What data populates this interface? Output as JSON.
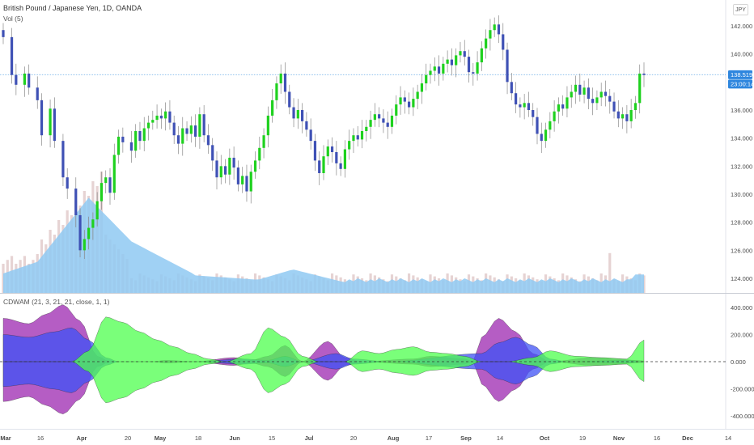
{
  "header": {
    "symbol_title": "British Pound / Japanese Yen, 1D, OANDA",
    "volume_label": "Vol (5)",
    "currency_button": "JPY"
  },
  "indicator": {
    "label": "CDWAM (21, 3, 21, 21, close, 1, 1)"
  },
  "price_tags": {
    "last_price": "138.519",
    "countdown": "23:00:14",
    "last_price_value": 138.519,
    "tag_color": "#2e86de"
  },
  "colors": {
    "up_candle": "#1fd11f",
    "down_candle": "#3f51b5",
    "volume_bar": "#e6d3d3",
    "volume_ma_fill": "#8fc9f2",
    "purple_fill": "#9c27b0",
    "blue_fill": "#3f51f5",
    "green_fill": "#4dff4d"
  },
  "chart_data": [
    {
      "type": "candlestick",
      "title": "British Pound / Japanese Yen, 1D, OANDA",
      "ylim": [
        123,
        143
      ],
      "y_ticks": [
        "142.000",
        "140.000",
        "138.000",
        "136.000",
        "134.000",
        "132.000",
        "130.000",
        "128.000",
        "126.000",
        "124.000"
      ],
      "x_ticks": [
        "Mar",
        "16",
        "Apr",
        "20",
        "May",
        "18",
        "Jun",
        "15",
        "Jul",
        "20",
        "Aug",
        "17",
        "Sep",
        "14",
        "Oct",
        "19",
        "Nov",
        "16",
        "Dec",
        "14"
      ],
      "x_range_days": [
        0,
        280
      ],
      "candles_close_by_day": [
        [
          0,
          141.2
        ],
        [
          2,
          138.5
        ],
        [
          3,
          137.8
        ],
        [
          5,
          138.6
        ],
        [
          6,
          137.6
        ],
        [
          8,
          136.7
        ],
        [
          9,
          134.2
        ],
        [
          11,
          136.1
        ],
        [
          12,
          133.8
        ],
        [
          14,
          131.2
        ],
        [
          15,
          130.4
        ],
        [
          17,
          128.5
        ],
        [
          18,
          126.0
        ],
        [
          19,
          126.8
        ],
        [
          20,
          127.6
        ],
        [
          21,
          128.2
        ],
        [
          22,
          129.5
        ],
        [
          23,
          130.8
        ],
        [
          24,
          131.2
        ],
        [
          25,
          130.1
        ],
        [
          26,
          132.8
        ],
        [
          27,
          134.1
        ],
        [
          28,
          133.7
        ],
        [
          30,
          133.1
        ],
        [
          31,
          134.5
        ],
        [
          32,
          133.8
        ],
        [
          33,
          134.7
        ],
        [
          34,
          135.1
        ],
        [
          35,
          135.3
        ],
        [
          36,
          135.6
        ],
        [
          37,
          135.4
        ],
        [
          38,
          135.9
        ],
        [
          39,
          135.1
        ],
        [
          40,
          134.2
        ],
        [
          41,
          133.6
        ],
        [
          42,
          134.7
        ],
        [
          43,
          134.3
        ],
        [
          44,
          134.9
        ],
        [
          45,
          134.1
        ],
        [
          46,
          135.7
        ],
        [
          47,
          134.2
        ],
        [
          48,
          133.5
        ],
        [
          49,
          132.4
        ],
        [
          50,
          131.2
        ],
        [
          51,
          132.0
        ],
        [
          52,
          131.4
        ],
        [
          53,
          132.6
        ],
        [
          54,
          131.9
        ],
        [
          55,
          130.7
        ],
        [
          56,
          131.3
        ],
        [
          57,
          130.2
        ],
        [
          58,
          131.6
        ],
        [
          59,
          132.4
        ],
        [
          60,
          133.3
        ],
        [
          61,
          134.2
        ],
        [
          62,
          135.6
        ],
        [
          63,
          136.7
        ],
        [
          64,
          137.9
        ],
        [
          65,
          138.6
        ],
        [
          66,
          137.3
        ],
        [
          67,
          136.2
        ],
        [
          68,
          135.4
        ],
        [
          69,
          136.0
        ],
        [
          70,
          135.2
        ],
        [
          71,
          134.6
        ],
        [
          72,
          133.8
        ],
        [
          73,
          132.4
        ],
        [
          74,
          131.5
        ],
        [
          75,
          132.7
        ],
        [
          76,
          133.4
        ],
        [
          77,
          133.0
        ],
        [
          78,
          132.2
        ],
        [
          79,
          131.8
        ],
        [
          80,
          133.2
        ],
        [
          81,
          133.8
        ],
        [
          82,
          134.2
        ],
        [
          83,
          133.9
        ],
        [
          84,
          134.5
        ],
        [
          85,
          134.8
        ],
        [
          86,
          135.3
        ],
        [
          87,
          135.7
        ],
        [
          88,
          135.4
        ],
        [
          89,
          135.1
        ],
        [
          90,
          134.8
        ],
        [
          91,
          135.6
        ],
        [
          92,
          136.4
        ],
        [
          93,
          136.9
        ],
        [
          94,
          136.6
        ],
        [
          95,
          136.2
        ],
        [
          96,
          136.8
        ],
        [
          97,
          137.3
        ],
        [
          98,
          137.9
        ],
        [
          99,
          138.5
        ],
        [
          100,
          138.8
        ],
        [
          101,
          139.1
        ],
        [
          102,
          138.6
        ],
        [
          103,
          139.3
        ],
        [
          104,
          139.6
        ],
        [
          105,
          139.2
        ],
        [
          106,
          139.9
        ],
        [
          107,
          140.2
        ],
        [
          108,
          139.8
        ],
        [
          109,
          138.7
        ],
        [
          110,
          138.6
        ],
        [
          111,
          139.4
        ],
        [
          112,
          140.4
        ],
        [
          113,
          141.1
        ],
        [
          114,
          141.7
        ],
        [
          115,
          142.1
        ],
        [
          116,
          141.4
        ],
        [
          117,
          140.3
        ],
        [
          118,
          138.0
        ],
        [
          119,
          137.2
        ],
        [
          120,
          136.4
        ],
        [
          121,
          136.2
        ],
        [
          122,
          136.5
        ],
        [
          123,
          136.0
        ],
        [
          124,
          135.5
        ],
        [
          125,
          134.3
        ],
        [
          126,
          133.8
        ],
        [
          127,
          134.6
        ],
        [
          128,
          135.2
        ],
        [
          129,
          135.9
        ],
        [
          130,
          136.4
        ],
        [
          131,
          136.1
        ],
        [
          132,
          136.9
        ],
        [
          133,
          137.3
        ],
        [
          134,
          137.8
        ],
        [
          135,
          137.1
        ],
        [
          136,
          137.6
        ],
        [
          137,
          136.8
        ],
        [
          138,
          136.5
        ],
        [
          139,
          136.9
        ],
        [
          140,
          137.3
        ],
        [
          141,
          137.0
        ],
        [
          142,
          136.6
        ],
        [
          143,
          135.9
        ],
        [
          144,
          135.4
        ],
        [
          145,
          135.7
        ],
        [
          146,
          135.2
        ],
        [
          147,
          136.0
        ],
        [
          148,
          136.5
        ],
        [
          149,
          138.6
        ],
        [
          150,
          138.5
        ]
      ]
    },
    {
      "type": "area",
      "title": "CDWAM (21, 3, 21, 21, close, 1, 1)",
      "ylim": [
        -480,
        450
      ],
      "y_ticks": [
        "400.000",
        "200.000",
        "0.000",
        "-200.000",
        "-400.000"
      ],
      "series": [
        {
          "color_key": "purple_fill",
          "amplitude_by_day": [
            [
              0,
              320
            ],
            [
              6,
              280
            ],
            [
              10,
              350
            ],
            [
              14,
              420
            ],
            [
              18,
              300
            ],
            [
              22,
              40
            ],
            [
              25,
              0
            ],
            [
              35,
              0
            ],
            [
              38,
              10
            ],
            [
              45,
              0
            ],
            [
              54,
              30
            ],
            [
              58,
              10
            ],
            [
              62,
              40
            ],
            [
              66,
              120
            ],
            [
              70,
              0
            ],
            [
              76,
              150
            ],
            [
              80,
              30
            ],
            [
              84,
              0
            ],
            [
              96,
              20
            ],
            [
              100,
              40
            ],
            [
              108,
              20
            ],
            [
              110,
              0
            ],
            [
              112,
              180
            ],
            [
              116,
              320
            ],
            [
              120,
              220
            ],
            [
              124,
              60
            ],
            [
              128,
              0
            ],
            [
              138,
              30
            ],
            [
              144,
              20
            ],
            [
              148,
              10
            ],
            [
              152,
              0
            ]
          ]
        },
        {
          "color_key": "blue_fill",
          "amplitude_by_day": [
            [
              0,
              200
            ],
            [
              6,
              180
            ],
            [
              12,
              220
            ],
            [
              16,
              250
            ],
            [
              20,
              160
            ],
            [
              24,
              30
            ],
            [
              27,
              0
            ],
            [
              36,
              0
            ],
            [
              45,
              0
            ],
            [
              56,
              20
            ],
            [
              62,
              10
            ],
            [
              66,
              40
            ],
            [
              70,
              0
            ],
            [
              78,
              60
            ],
            [
              82,
              20
            ],
            [
              90,
              0
            ],
            [
              112,
              60
            ],
            [
              116,
              140
            ],
            [
              120,
              180
            ],
            [
              124,
              120
            ],
            [
              128,
              20
            ],
            [
              132,
              0
            ],
            [
              146,
              10
            ],
            [
              150,
              0
            ]
          ]
        },
        {
          "color_key": "green_fill",
          "amplitude_by_day": [
            [
              0,
              0
            ],
            [
              16,
              0
            ],
            [
              20,
              80
            ],
            [
              24,
              330
            ],
            [
              28,
              290
            ],
            [
              32,
              220
            ],
            [
              36,
              160
            ],
            [
              40,
              110
            ],
            [
              44,
              60
            ],
            [
              48,
              20
            ],
            [
              52,
              0
            ],
            [
              58,
              60
            ],
            [
              62,
              250
            ],
            [
              66,
              180
            ],
            [
              70,
              40
            ],
            [
              74,
              0
            ],
            [
              80,
              0
            ],
            [
              84,
              80
            ],
            [
              88,
              60
            ],
            [
              92,
              90
            ],
            [
              96,
              110
            ],
            [
              100,
              70
            ],
            [
              104,
              60
            ],
            [
              108,
              40
            ],
            [
              112,
              0
            ],
            [
              118,
              0
            ],
            [
              124,
              30
            ],
            [
              128,
              80
            ],
            [
              134,
              40
            ],
            [
              140,
              30
            ],
            [
              146,
              20
            ],
            [
              150,
              160
            ],
            [
              152,
              150
            ]
          ]
        }
      ]
    }
  ]
}
